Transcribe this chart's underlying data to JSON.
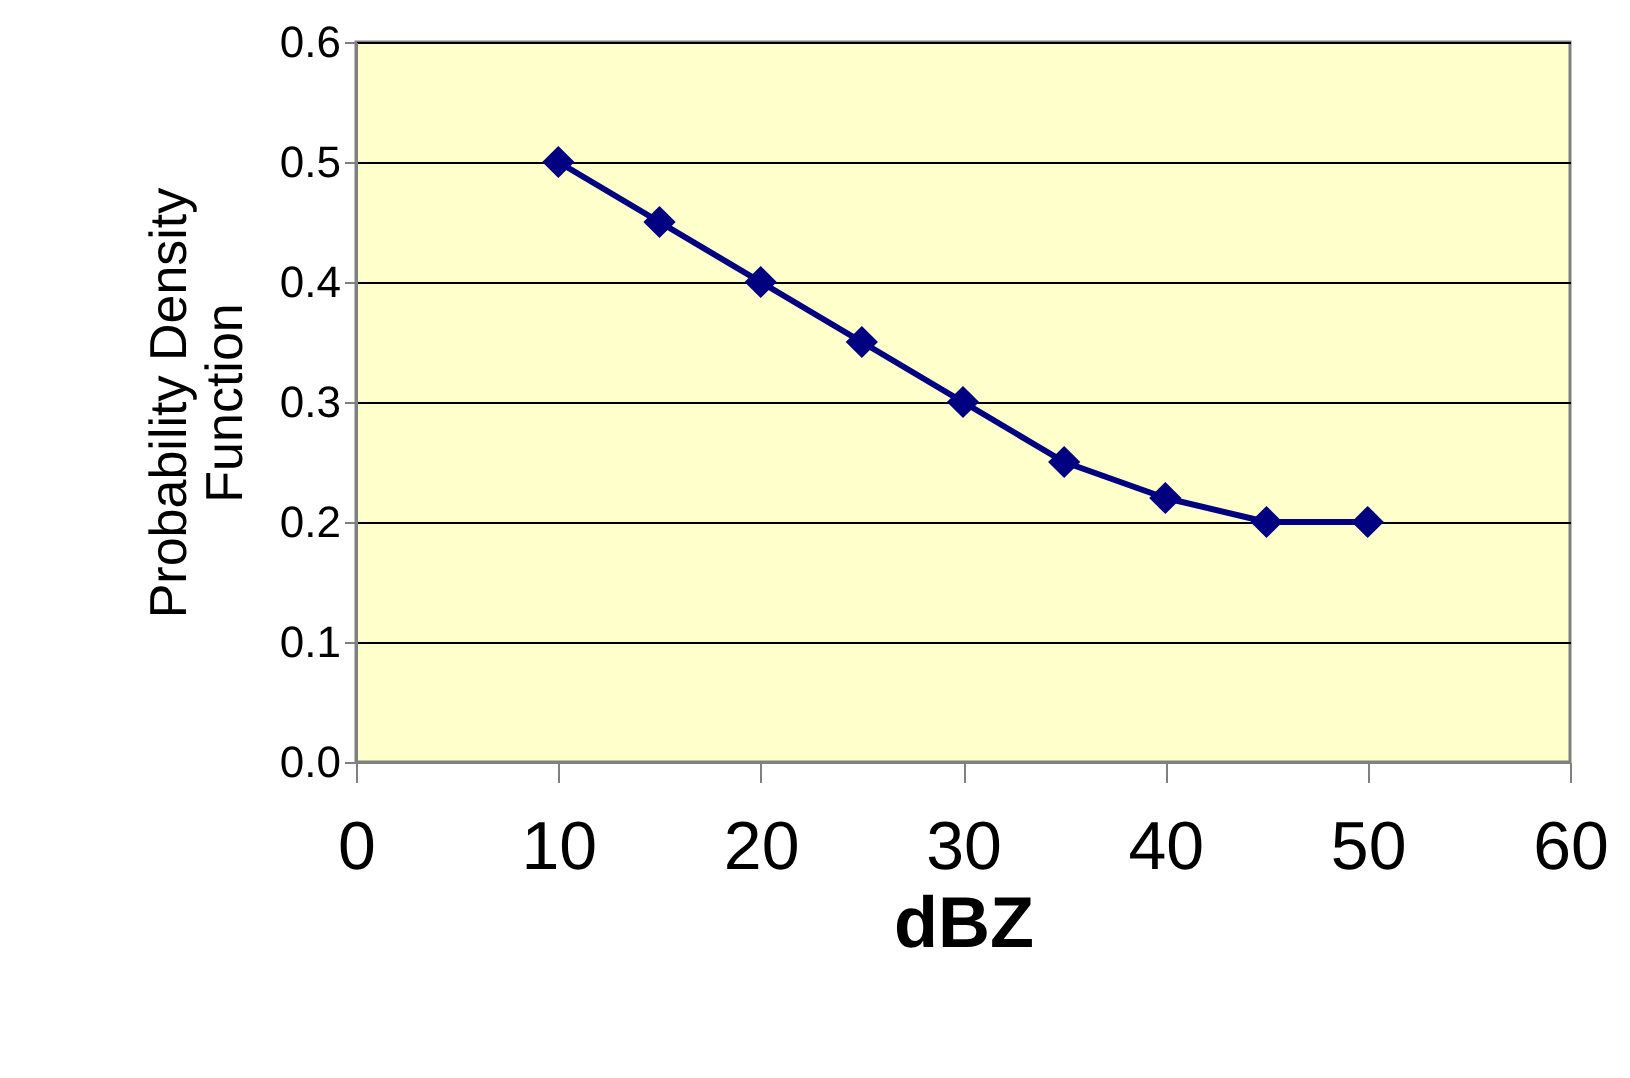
{
  "chart_data": {
    "type": "line",
    "xlabel": "dBZ",
    "ylabel": "Probability Density Function",
    "x": [
      10,
      15,
      20,
      25,
      30,
      35,
      40,
      45,
      50
    ],
    "series": [
      {
        "color": "#000080",
        "values": [
          0.5,
          0.45,
          0.4,
          0.35,
          0.3,
          0.25,
          0.22,
          0.2,
          0.2
        ]
      }
    ],
    "xlim": [
      0,
      60
    ],
    "xticks": [
      0,
      10,
      20,
      30,
      40,
      50,
      60
    ],
    "ylim": [
      0.0,
      0.6
    ],
    "yticks": [
      {
        "value": 0,
        "label": "0.0"
      },
      0.1,
      0.2,
      0.3,
      0.4,
      0.5,
      0.6
    ],
    "grid": "y",
    "marker": "diamond",
    "line_style": "solid"
  }
}
